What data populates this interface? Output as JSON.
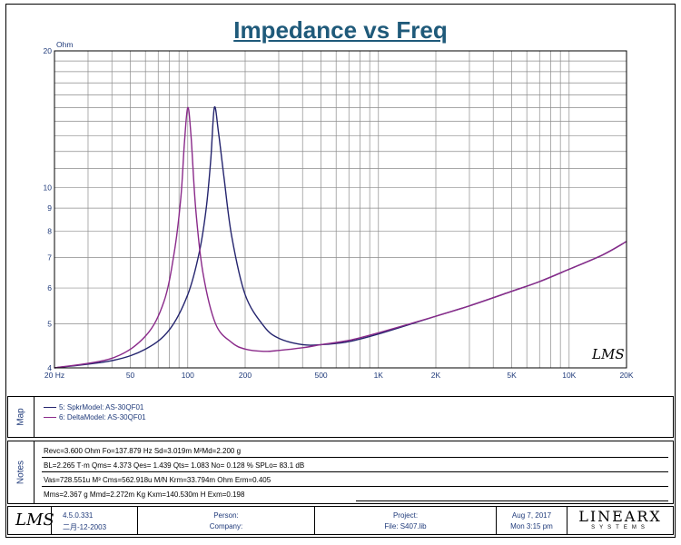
{
  "chart_data": {
    "type": "line",
    "title": "Impedance vs Freq",
    "ylabel": "Ohm",
    "xscale": "log",
    "yscale": "log",
    "xlim": [
      20,
      20000
    ],
    "ylim": [
      4,
      20
    ],
    "grid": true,
    "x_tick_labels": [
      {
        "v": 20,
        "t": "20 Hz"
      },
      {
        "v": 50,
        "t": "50"
      },
      {
        "v": 100,
        "t": "100"
      },
      {
        "v": 200,
        "t": "200"
      },
      {
        "v": 500,
        "t": "500"
      },
      {
        "v": 1000,
        "t": "1K"
      },
      {
        "v": 2000,
        "t": "2K"
      },
      {
        "v": 5000,
        "t": "5K"
      },
      {
        "v": 10000,
        "t": "10K"
      },
      {
        "v": 20000,
        "t": "20K"
      }
    ],
    "y_tick_labels": [
      {
        "v": 20,
        "t": "20"
      },
      {
        "v": 10,
        "t": "10"
      },
      {
        "v": 9,
        "t": "9"
      },
      {
        "v": 8,
        "t": "8"
      },
      {
        "v": 7,
        "t": "7"
      },
      {
        "v": 6,
        "t": "6"
      },
      {
        "v": 5,
        "t": "5"
      },
      {
        "v": 4,
        "t": "4"
      }
    ],
    "series": [
      {
        "name": "5: SpkrModel: AS-30QF01",
        "color": "#24246e",
        "x": [
          20,
          40,
          60,
          80,
          100,
          115,
          125,
          132,
          137.9,
          145,
          155,
          170,
          200,
          250,
          300,
          400,
          500,
          700,
          1000,
          2000,
          3000,
          5000,
          7000,
          10000,
          15000,
          20000
        ],
        "y": [
          4.0,
          4.15,
          4.4,
          4.85,
          5.8,
          7.2,
          9.0,
          11.5,
          15.0,
          13.2,
          10.5,
          7.8,
          5.8,
          4.95,
          4.65,
          4.5,
          4.5,
          4.57,
          4.75,
          5.2,
          5.48,
          5.9,
          6.2,
          6.6,
          7.1,
          7.6
        ]
      },
      {
        "name": "6: DeltaModel: AS-30QF01",
        "color": "#8a2a8a",
        "x": [
          20,
          40,
          60,
          75,
          85,
          92,
          96,
          100,
          104,
          110,
          120,
          140,
          170,
          200,
          250,
          300,
          400,
          500,
          700,
          1000,
          2000,
          3000,
          5000,
          7000,
          10000,
          15000,
          20000
        ],
        "y": [
          4.0,
          4.2,
          4.7,
          5.6,
          7.2,
          9.5,
          12.5,
          15.0,
          13.0,
          9.0,
          6.5,
          5.0,
          4.55,
          4.4,
          4.35,
          4.37,
          4.43,
          4.5,
          4.6,
          4.78,
          5.2,
          5.48,
          5.9,
          6.2,
          6.6,
          7.1,
          7.6
        ]
      }
    ]
  },
  "watermark": "LMS",
  "map": {
    "label": "Map",
    "entries": [
      {
        "text": "5: SpkrModel: AS-30QF01",
        "color": "#24246e"
      },
      {
        "text": "6: DeltaModel: AS-30QF01",
        "color": "#8a2a8a"
      }
    ]
  },
  "notes": {
    "label": "Notes",
    "lines": [
      "Revc=3.600 Ohm  Fo=137.879 Hz  Sd=3.019m M²Md=2.200 g",
      "BL=2.265 T·m  Qms= 4.373  Qes= 1.439  Qts= 1.083  No= 0.128 %  SPLo= 83.1 dB",
      "Vas=728.551u M³ Cms=562.918u M/N  Krm=33.794m Ohm  Erm=0.405",
      "Mms=2.367 g  Mmd=2.272m Kg  Kxm=140.530m H  Exm=0.198"
    ]
  },
  "footer": {
    "logo": "LMS",
    "version": "4.5.0.331",
    "build_date": "二月-12-2003",
    "person_label": "Person:",
    "company_label": "Company:",
    "project_label": "Project:",
    "file_label": "File: S407.lib",
    "date": "Aug  7, 2017",
    "time": "Mon  3:15 pm",
    "brand": "LINEARX",
    "brand_sub": "SYSTEMS"
  }
}
